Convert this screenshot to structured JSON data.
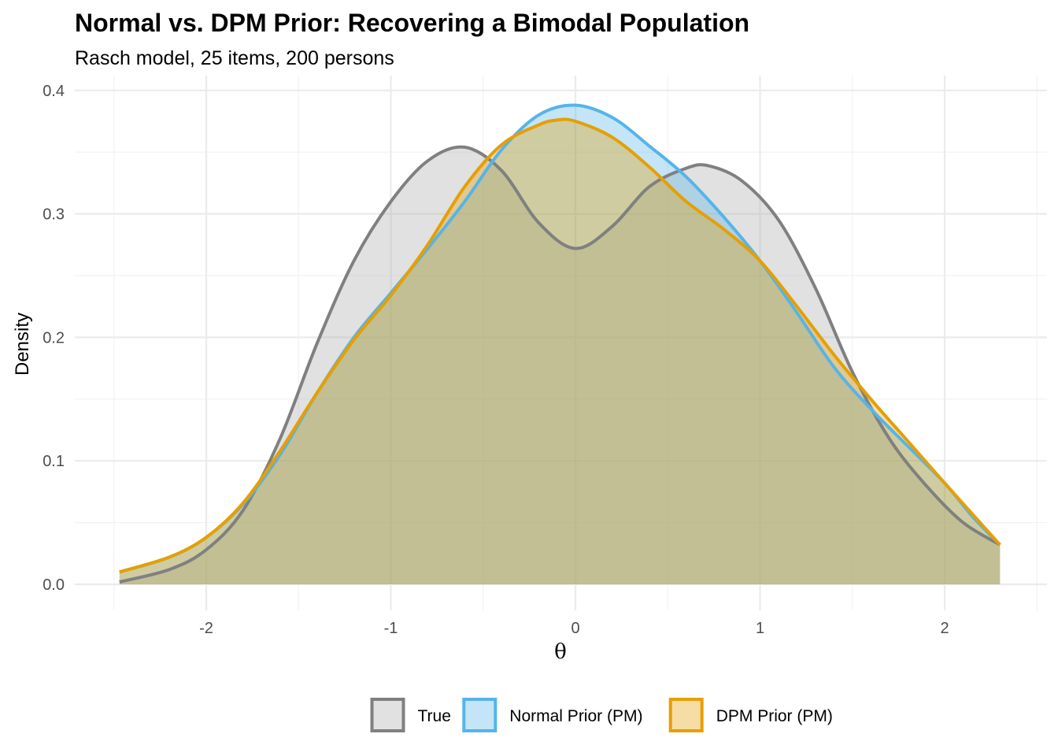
{
  "chart_data": {
    "type": "area",
    "title": "Normal vs. DPM Prior: Recovering a Bimodal Population",
    "subtitle": "Rasch model, 25 items, 200 persons",
    "xlabel": "θ",
    "ylabel": "Density",
    "xlim": [
      -2.5,
      2.5
    ],
    "ylim": [
      0,
      0.4
    ],
    "x_ticks": [
      -2,
      -1,
      0,
      1,
      2
    ],
    "y_ticks": [
      0.0,
      0.1,
      0.2,
      0.3,
      0.4
    ],
    "y_tick_labels": [
      "0.0",
      "0.1",
      "0.2",
      "0.3",
      "0.4"
    ],
    "grid": true,
    "legend_position": "bottom",
    "series": [
      {
        "name": "True",
        "line_color": "#808080",
        "fill_color": "#a8a8a8",
        "x": [
          -2.47,
          -2.2,
          -2.0,
          -1.8,
          -1.6,
          -1.4,
          -1.2,
          -1.0,
          -0.8,
          -0.6,
          -0.4,
          -0.2,
          0.0,
          0.2,
          0.4,
          0.6,
          0.72,
          0.9,
          1.1,
          1.3,
          1.5,
          1.7,
          1.9,
          2.1,
          2.3
        ],
        "y": [
          0.002,
          0.012,
          0.028,
          0.06,
          0.118,
          0.195,
          0.262,
          0.31,
          0.343,
          0.354,
          0.335,
          0.293,
          0.272,
          0.29,
          0.322,
          0.337,
          0.339,
          0.327,
          0.295,
          0.24,
          0.172,
          0.118,
          0.08,
          0.05,
          0.032
        ]
      },
      {
        "name": "Normal Prior (PM)",
        "line_color": "#56b4e9",
        "fill_color": "#56b4e9",
        "x": [
          -2.47,
          -2.2,
          -2.0,
          -1.8,
          -1.6,
          -1.4,
          -1.2,
          -1.0,
          -0.8,
          -0.6,
          -0.4,
          -0.2,
          0.0,
          0.2,
          0.4,
          0.6,
          0.8,
          1.0,
          1.2,
          1.4,
          1.6,
          1.8,
          2.0,
          2.15,
          2.3
        ],
        "y": [
          0.01,
          0.022,
          0.038,
          0.065,
          0.105,
          0.155,
          0.2,
          0.236,
          0.272,
          0.31,
          0.352,
          0.38,
          0.388,
          0.378,
          0.355,
          0.33,
          0.298,
          0.262,
          0.22,
          0.176,
          0.142,
          0.112,
          0.082,
          0.055,
          0.032
        ]
      },
      {
        "name": "DPM Prior (PM)",
        "line_color": "#e69f00",
        "fill_color": "#e69f00",
        "x": [
          -2.47,
          -2.2,
          -2.0,
          -1.8,
          -1.6,
          -1.4,
          -1.2,
          -1.0,
          -0.8,
          -0.6,
          -0.4,
          -0.2,
          -0.1,
          0.0,
          0.2,
          0.4,
          0.6,
          0.8,
          1.0,
          1.2,
          1.4,
          1.6,
          1.8,
          2.0,
          2.3
        ],
        "y": [
          0.01,
          0.022,
          0.038,
          0.066,
          0.108,
          0.155,
          0.198,
          0.234,
          0.275,
          0.322,
          0.356,
          0.372,
          0.376,
          0.375,
          0.362,
          0.338,
          0.31,
          0.288,
          0.262,
          0.225,
          0.186,
          0.15,
          0.116,
          0.082,
          0.032
        ]
      }
    ]
  }
}
